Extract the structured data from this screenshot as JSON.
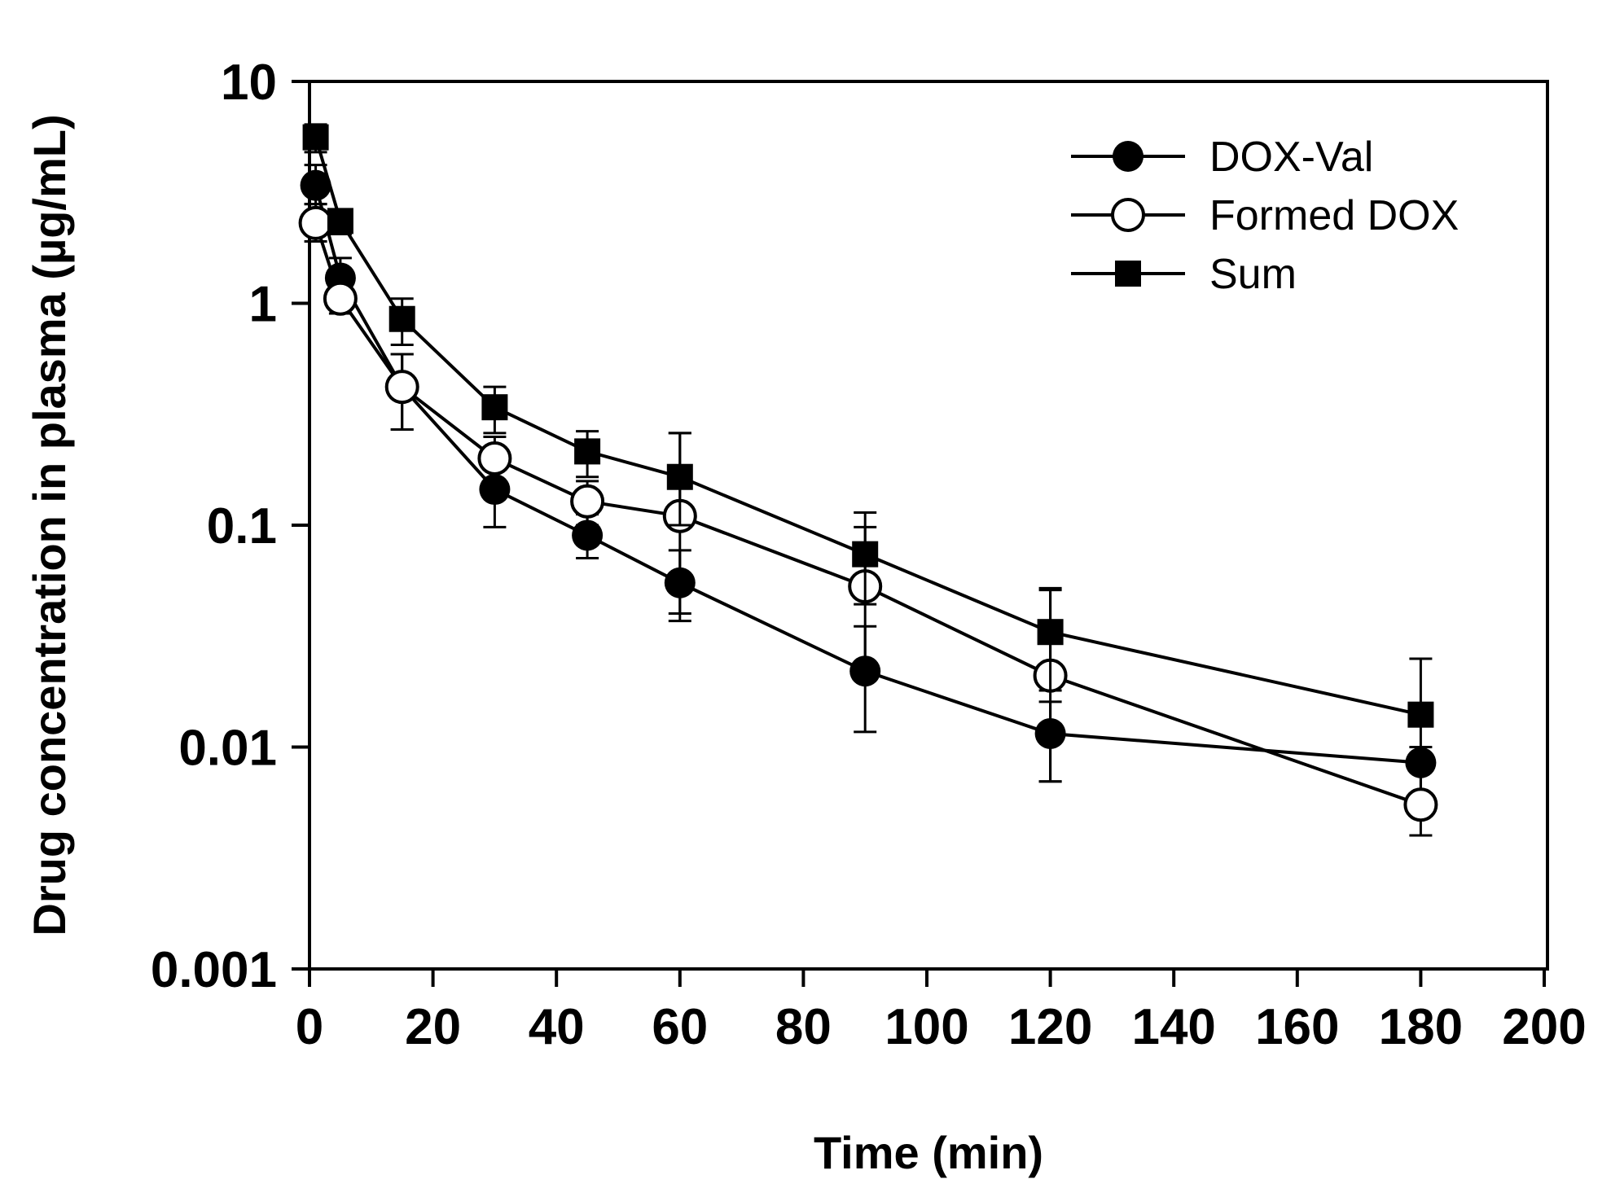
{
  "chart_data": {
    "type": "line",
    "title": "",
    "xlabel": "Time (min)",
    "ylabel": "Drug concentration in plasma (µg/mL)",
    "xlim": [
      0,
      200
    ],
    "ylim": [
      0.001,
      10
    ],
    "yscale": "log",
    "xticks": [
      0,
      20,
      40,
      60,
      80,
      100,
      120,
      140,
      160,
      180,
      200
    ],
    "yticks": [
      0.001,
      0.01,
      0.1,
      1,
      10
    ],
    "ytick_labels": [
      "0.001",
      "0.01",
      "0.1",
      "1",
      "10"
    ],
    "grid": false,
    "legend_position": "top-right",
    "series": [
      {
        "name": "DOX-Val",
        "marker": "filled-circle",
        "x": [
          1,
          5,
          15,
          30,
          45,
          60,
          90,
          120,
          180
        ],
        "y": [
          3.4,
          1.3,
          0.42,
          0.145,
          0.09,
          0.055,
          0.022,
          0.0115,
          0.0085
        ],
        "err_low": [
          0.6,
          0.3,
          0.15,
          0.047,
          0.019,
          0.018,
          0.0103,
          0.0045,
          0.0035
        ],
        "err_high": [
          0.8,
          0.3,
          0.17,
          0.06,
          0.022,
          0.022,
          0.013,
          0.0045,
          0.005
        ]
      },
      {
        "name": "Formed DOX",
        "marker": "open-circle",
        "x": [
          1,
          5,
          15,
          30,
          45,
          60,
          90,
          120,
          180
        ],
        "y": [
          2.3,
          1.05,
          0.42,
          0.2,
          0.128,
          0.11,
          0.053,
          0.021,
          0.0055
        ],
        "err_low": [
          0.4,
          0.15,
          0.15,
          0.05,
          0.028,
          0.07,
          0.033,
          0.014,
          0.0015
        ],
        "err_high": [
          0.5,
          0.2,
          0.17,
          0.05,
          0.03,
          0.15,
          0.045,
          0.03,
          0.0045
        ]
      },
      {
        "name": "Sum",
        "marker": "filled-square",
        "x": [
          1,
          5,
          15,
          30,
          45,
          60,
          90,
          120,
          180
        ],
        "y": [
          5.6,
          2.35,
          0.85,
          0.34,
          0.215,
          0.165,
          0.074,
          0.033,
          0.014
        ],
        "err_low": [
          0.8,
          0.3,
          0.2,
          0.08,
          0.05,
          0.065,
          0.03,
          0.015,
          0.0015
        ],
        "err_high": [
          0.8,
          0.3,
          0.2,
          0.08,
          0.05,
          0.095,
          0.04,
          0.019,
          0.011
        ]
      }
    ]
  }
}
